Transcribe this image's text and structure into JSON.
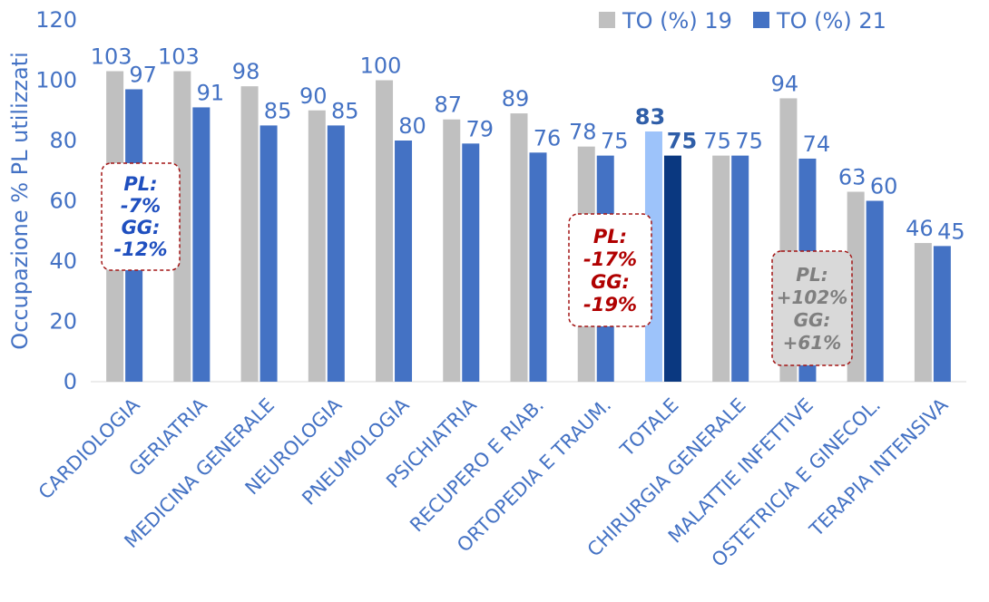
{
  "chart_data": {
    "type": "bar",
    "ylabel": "Occupazione % PL utilizzati",
    "ylim": [
      0,
      120
    ],
    "yticks": [
      "0",
      "20",
      "40",
      "60",
      "80",
      "100",
      "120"
    ],
    "grid": false,
    "legend_position": "top-right",
    "categories": [
      "CARDIOLOGIA",
      "GERIATRIA",
      "MEDICINA GENERALE",
      "NEUROLOGIA",
      "PNEUMOLOGIA",
      "PSICHIATRIA",
      "RECUPERO E RIAB.",
      "ORTOPEDIA E TRAUM.",
      "TOTALE",
      "CHIRURGIA GENERALE",
      "MALATTIE INFETTIVE",
      "OSTETRICIA E GINECOL.",
      "TERAPIA INTENSIVA"
    ],
    "series": [
      {
        "name": "TO (%) 19",
        "values": [
          103,
          103,
          98,
          90,
          100,
          87,
          89,
          78,
          83,
          75,
          94,
          63,
          46
        ],
        "labels": [
          "103",
          "103",
          "98",
          "90",
          "100",
          "87",
          "89",
          "78",
          "83",
          "75",
          "94",
          "63",
          "46"
        ]
      },
      {
        "name": "TO (%) 21",
        "values": [
          97,
          91,
          85,
          85,
          80,
          79,
          76,
          75,
          75,
          75,
          74,
          60,
          45
        ],
        "labels": [
          "97",
          "91",
          "85",
          "85",
          "80",
          "79",
          "76",
          "75",
          "75",
          "75",
          "74",
          "60",
          "45"
        ]
      }
    ],
    "highlight_category": "TOTALE",
    "annotations": [
      {
        "lines": [
          "PL:",
          "-7%",
          "GG:",
          "-12%"
        ],
        "near": "CARDIOLOGIA"
      },
      {
        "lines": [
          "PL:",
          "-17%",
          "GG:",
          "-19%"
        ],
        "near": "ORTOPEDIA E TRAUM."
      },
      {
        "lines": [
          "PL:",
          "+102%",
          "GG:",
          "+61%"
        ],
        "near": "MALATTIE INFETTIVE"
      }
    ]
  },
  "colors": {
    "series_19": "#c0c0c0",
    "series_21": "#4472c4",
    "total_19": "#9dc3fa",
    "total_21": "#0a3880",
    "text": "#4472c4",
    "annotation_border": "#a31515",
    "annotation_blue_text": "#1f4fbf",
    "annotation_red_text": "#b00000",
    "annotation_gray_text": "#7f7f7f",
    "annotation_gray_fill": "#d9d9d9"
  }
}
